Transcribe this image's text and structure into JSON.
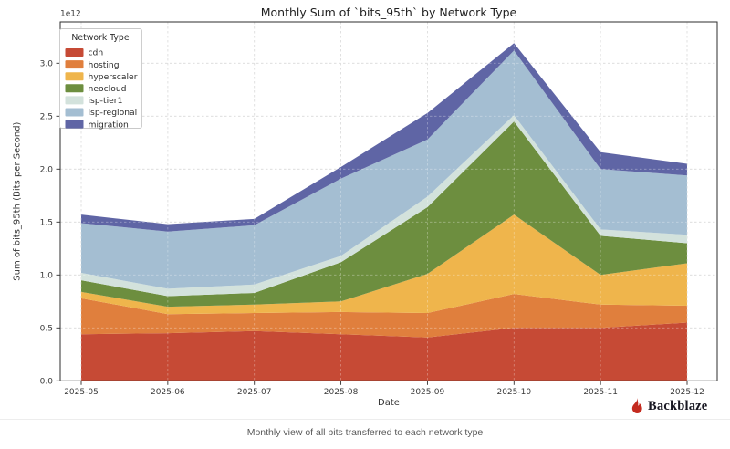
{
  "chart_data": {
    "type": "area",
    "stacked": true,
    "title": "Monthly Sum of `bits_95th` by Network Type",
    "xlabel": "Date",
    "ylabel": "Sum of bits_95th (Bits per Second)",
    "offset_label": "1e12",
    "legend_title": "Network Type",
    "legend_position": "upper-left",
    "grid": true,
    "unit": "1e12 bits per second",
    "categories": [
      "2025-05",
      "2025-06",
      "2025-07",
      "2025-08",
      "2025-09",
      "2025-10",
      "2025-11",
      "2025-12"
    ],
    "yticks": [
      0.0,
      0.5,
      1.0,
      1.5,
      2.0,
      2.5,
      3.0
    ],
    "ylim": [
      0,
      3.39
    ],
    "series": [
      {
        "name": "cdn",
        "color": "#C64A35",
        "values": [
          0.44,
          0.45,
          0.47,
          0.44,
          0.41,
          0.5,
          0.5,
          0.55
        ]
      },
      {
        "name": "hosting",
        "color": "#E07F3D",
        "values": [
          0.34,
          0.18,
          0.17,
          0.21,
          0.23,
          0.32,
          0.22,
          0.16
        ]
      },
      {
        "name": "hyperscaler",
        "color": "#EFB54C",
        "values": [
          0.06,
          0.07,
          0.08,
          0.1,
          0.37,
          0.75,
          0.28,
          0.4
        ]
      },
      {
        "name": "neocloud",
        "color": "#6D8E3F",
        "values": [
          0.11,
          0.1,
          0.11,
          0.37,
          0.63,
          0.88,
          0.37,
          0.19
        ]
      },
      {
        "name": "isp-tier1",
        "color": "#D3E2DC",
        "values": [
          0.07,
          0.07,
          0.08,
          0.06,
          0.1,
          0.06,
          0.06,
          0.08
        ]
      },
      {
        "name": "isp-regional",
        "color": "#A4BED2",
        "values": [
          0.47,
          0.54,
          0.56,
          0.73,
          0.54,
          0.61,
          0.57,
          0.56
        ]
      },
      {
        "name": "migration",
        "color": "#5F65A5",
        "values": [
          0.08,
          0.07,
          0.06,
          0.11,
          0.25,
          0.07,
          0.16,
          0.11
        ]
      }
    ]
  },
  "caption": "Monthly view of all bits transferred to each network type",
  "brand": {
    "name": "Backblaze",
    "logo_color": "#C42B1F"
  }
}
